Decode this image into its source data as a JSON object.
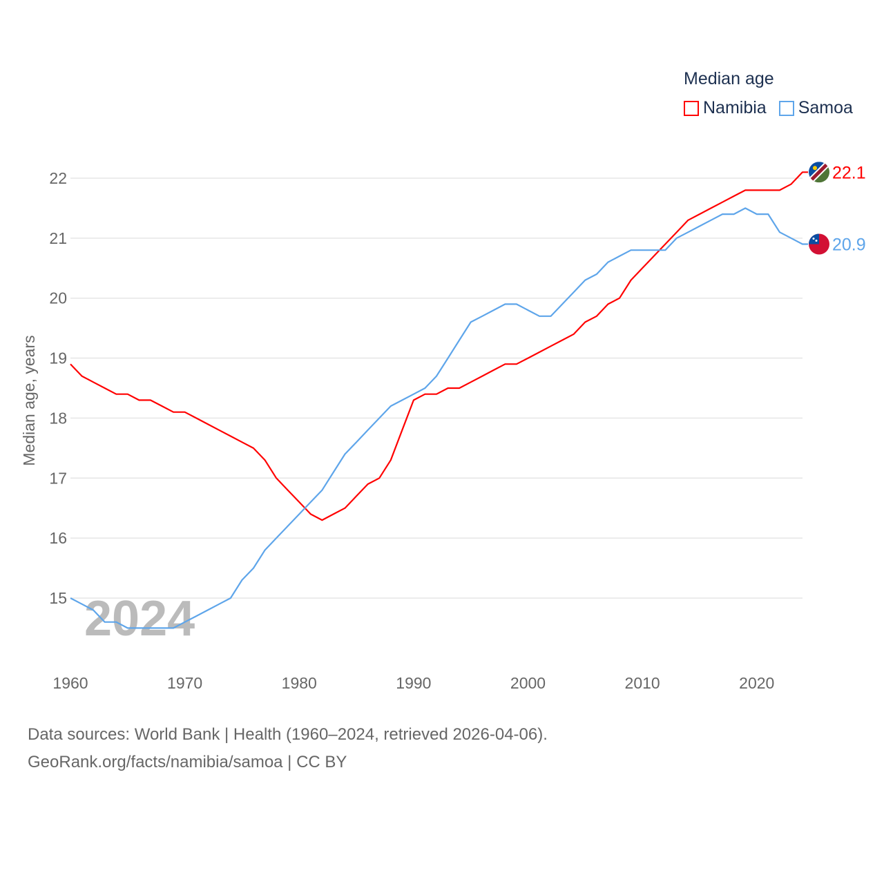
{
  "legend": {
    "title": "Median age",
    "items": [
      {
        "name": "Namibia",
        "color": "#ff0000"
      },
      {
        "name": "Samoa",
        "color": "#5ea5ea"
      }
    ]
  },
  "footer": {
    "line1": "Data sources: World Bank | Health (1960–2024, retrieved 2026-04-06).",
    "line2": "GeoRank.org/facts/namibia/samoa | CC BY"
  },
  "chart_data": {
    "type": "line",
    "title": "Median age",
    "xlabel": "",
    "ylabel": "Median age, years",
    "year_watermark": "2024",
    "xlim": [
      1960,
      2024
    ],
    "ylim": [
      14.5,
      22.2
    ],
    "xticks": [
      "1960",
      "1970",
      "1980",
      "1990",
      "2000",
      "2010",
      "2020"
    ],
    "yticks": [
      "15",
      "16",
      "17",
      "18",
      "19",
      "20",
      "21",
      "22"
    ],
    "grid": true,
    "legend_position": "top-right",
    "x": [
      1960,
      1961,
      1962,
      1963,
      1964,
      1965,
      1966,
      1967,
      1968,
      1969,
      1970,
      1971,
      1972,
      1973,
      1974,
      1975,
      1976,
      1977,
      1978,
      1979,
      1980,
      1981,
      1982,
      1983,
      1984,
      1985,
      1986,
      1987,
      1988,
      1989,
      1990,
      1991,
      1992,
      1993,
      1994,
      1995,
      1996,
      1997,
      1998,
      1999,
      2000,
      2001,
      2002,
      2003,
      2004,
      2005,
      2006,
      2007,
      2008,
      2009,
      2010,
      2011,
      2012,
      2013,
      2014,
      2015,
      2016,
      2017,
      2018,
      2019,
      2020,
      2021,
      2022,
      2023,
      2024
    ],
    "series": [
      {
        "name": "Namibia",
        "color": "#ff0000",
        "end_label": "22.1",
        "flag": "namibia-flag",
        "values": [
          18.9,
          18.7,
          18.6,
          18.5,
          18.4,
          18.4,
          18.3,
          18.3,
          18.2,
          18.1,
          18.1,
          18.0,
          17.9,
          17.8,
          17.7,
          17.6,
          17.5,
          17.3,
          17.0,
          16.8,
          16.6,
          16.4,
          16.3,
          16.4,
          16.5,
          16.7,
          16.9,
          17.0,
          17.3,
          17.8,
          18.3,
          18.4,
          18.4,
          18.5,
          18.5,
          18.6,
          18.7,
          18.8,
          18.9,
          18.9,
          19.0,
          19.1,
          19.2,
          19.3,
          19.4,
          19.6,
          19.7,
          19.9,
          20.0,
          20.3,
          20.5,
          20.7,
          20.9,
          21.1,
          21.3,
          21.4,
          21.5,
          21.6,
          21.7,
          21.8,
          21.8,
          21.8,
          21.8,
          21.9,
          22.1
        ]
      },
      {
        "name": "Samoa",
        "color": "#5ea5ea",
        "end_label": "20.9",
        "flag": "samoa-flag",
        "values": [
          15.0,
          14.9,
          14.8,
          14.6,
          14.6,
          14.5,
          14.5,
          14.5,
          14.5,
          14.5,
          14.6,
          14.7,
          14.8,
          14.9,
          15.0,
          15.3,
          15.5,
          15.8,
          16.0,
          16.2,
          16.4,
          16.6,
          16.8,
          17.1,
          17.4,
          17.6,
          17.8,
          18.0,
          18.2,
          18.3,
          18.4,
          18.5,
          18.7,
          19.0,
          19.3,
          19.6,
          19.7,
          19.8,
          19.9,
          19.9,
          19.8,
          19.7,
          19.7,
          19.9,
          20.1,
          20.3,
          20.4,
          20.6,
          20.7,
          20.8,
          20.8,
          20.8,
          20.8,
          21.0,
          21.1,
          21.2,
          21.3,
          21.4,
          21.4,
          21.5,
          21.4,
          21.4,
          21.1,
          21.0,
          20.9
        ]
      }
    ]
  }
}
